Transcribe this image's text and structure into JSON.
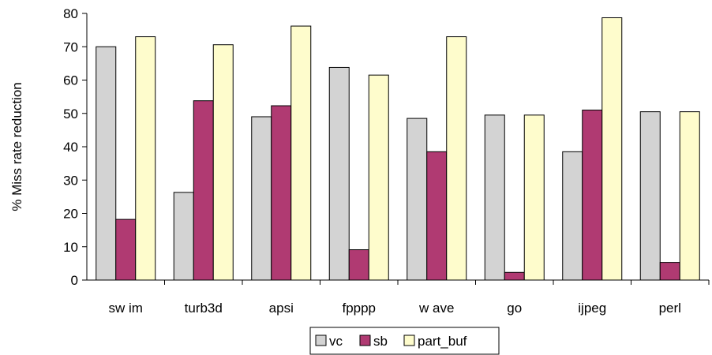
{
  "chart_data": {
    "type": "bar",
    "title": "",
    "xlabel": "",
    "ylabel": "% Miss rate reduction",
    "ylim": [
      0,
      80
    ],
    "yticks": [
      0,
      10,
      20,
      30,
      40,
      50,
      60,
      70,
      80
    ],
    "grid": false,
    "legend_position": "bottom",
    "categories": [
      "sw im",
      "turb3d",
      "apsi",
      "fpppp",
      "w ave",
      "go",
      "ijpeg",
      "perl"
    ],
    "series": [
      {
        "name": "vc",
        "color": "#d3d3d3",
        "values": [
          70,
          26.3,
          49,
          63.8,
          48.5,
          49.5,
          38.5,
          50.5
        ]
      },
      {
        "name": "sb",
        "color": "#b03a72",
        "values": [
          18.2,
          53.8,
          52.3,
          9.1,
          38.5,
          2.3,
          51,
          5.3
        ]
      },
      {
        "name": "part_buf",
        "color": "#fefccc",
        "values": [
          73,
          70.6,
          76.2,
          61.5,
          73,
          49.5,
          78.7,
          50.5
        ]
      }
    ]
  }
}
